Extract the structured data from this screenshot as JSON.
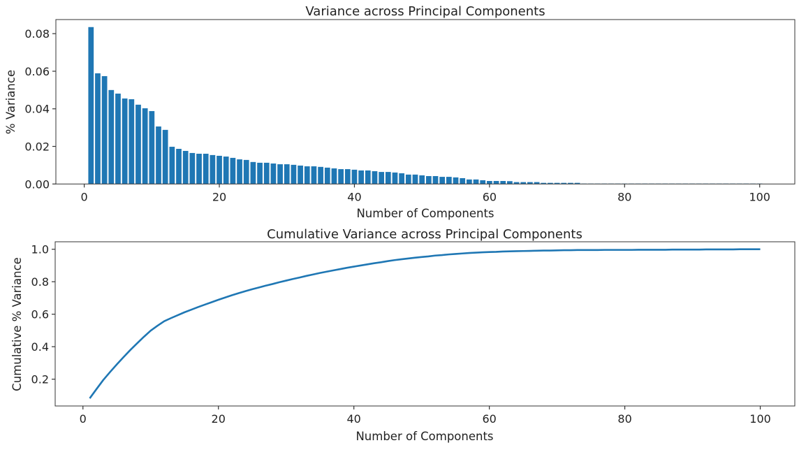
{
  "chart_data": [
    {
      "type": "bar",
      "title": "Variance across Principal Components",
      "xlabel": "Number of Components",
      "ylabel": "% Variance",
      "xlim": [
        -4.2,
        105.2
      ],
      "ylim": [
        0,
        0.0875
      ],
      "xticks": [
        0,
        20,
        40,
        60,
        80,
        100
      ],
      "xtick_labels": [
        "0",
        "20",
        "40",
        "60",
        "80",
        "100"
      ],
      "yticks": [
        0,
        0.02,
        0.04,
        0.06,
        0.08
      ],
      "ytick_labels": [
        "0.00",
        "0.02",
        "0.04",
        "0.06",
        "0.08"
      ],
      "grid": false,
      "color": "#1f77b4",
      "x_start": 1,
      "values": [
        0.0835,
        0.0589,
        0.0574,
        0.05,
        0.0481,
        0.0455,
        0.0451,
        0.0422,
        0.0403,
        0.0388,
        0.0306,
        0.0288,
        0.0198,
        0.0187,
        0.0176,
        0.0165,
        0.0161,
        0.0161,
        0.0154,
        0.015,
        0.0146,
        0.0139,
        0.0131,
        0.0128,
        0.0117,
        0.0113,
        0.0113,
        0.0109,
        0.0105,
        0.0105,
        0.0102,
        0.0098,
        0.0094,
        0.0094,
        0.0091,
        0.0087,
        0.0083,
        0.0079,
        0.0079,
        0.0076,
        0.0072,
        0.0072,
        0.0068,
        0.0064,
        0.0064,
        0.0061,
        0.0057,
        0.005,
        0.005,
        0.0046,
        0.0042,
        0.0042,
        0.0038,
        0.0038,
        0.0035,
        0.0031,
        0.0024,
        0.0024,
        0.002,
        0.0016,
        0.0016,
        0.0016,
        0.0015,
        0.001,
        0.001,
        0.001,
        0.001,
        0.0006,
        0.0006,
        0.0006,
        0.0006,
        0.0006,
        0.0006,
        0.0002,
        0.0002,
        0.0002,
        0.0002,
        0.0002,
        0.0002,
        0.0002,
        0.0002,
        0.0002,
        0.0002,
        0.0002,
        0.0002,
        0.0002,
        0.0002,
        0.0002,
        0.0002,
        0.0002,
        0.0002,
        0.0002,
        0.0002,
        0.0002,
        0.0002,
        0.0002,
        0.0002,
        0.0002,
        0.0002,
        0.0002
      ]
    },
    {
      "type": "line",
      "title": "Cumulative Variance across Principal Components",
      "xlabel": "Number of Components",
      "ylabel": "Cumulative % Variance",
      "xlim": [
        -4.1,
        105.1
      ],
      "ylim": [
        0.035,
        1.046
      ],
      "xticks": [
        0,
        20,
        40,
        60,
        80,
        100
      ],
      "xtick_labels": [
        "0",
        "20",
        "40",
        "60",
        "80",
        "100"
      ],
      "yticks": [
        0.2,
        0.4,
        0.6,
        0.8,
        1.0
      ],
      "ytick_labels": [
        "0.2",
        "0.4",
        "0.6",
        "0.8",
        "1.0"
      ],
      "grid": false,
      "color": "#1f77b4",
      "x_start": 1,
      "values": [
        0.082,
        0.139,
        0.195,
        0.244,
        0.291,
        0.336,
        0.38,
        0.421,
        0.461,
        0.499,
        0.529,
        0.557,
        0.576,
        0.594,
        0.612,
        0.628,
        0.644,
        0.659,
        0.674,
        0.689,
        0.703,
        0.717,
        0.73,
        0.742,
        0.754,
        0.765,
        0.776,
        0.786,
        0.797,
        0.807,
        0.817,
        0.826,
        0.836,
        0.845,
        0.854,
        0.862,
        0.87,
        0.878,
        0.886,
        0.893,
        0.9,
        0.907,
        0.914,
        0.92,
        0.927,
        0.933,
        0.938,
        0.943,
        0.948,
        0.952,
        0.956,
        0.961,
        0.964,
        0.968,
        0.971,
        0.974,
        0.977,
        0.979,
        0.981,
        0.983,
        0.984,
        0.986,
        0.987,
        0.988,
        0.989,
        0.99,
        0.991,
        0.992,
        0.992,
        0.993,
        0.994,
        0.994,
        0.995,
        0.995,
        0.995,
        0.995,
        0.996,
        0.996,
        0.996,
        0.996,
        0.996,
        0.997,
        0.997,
        0.997,
        0.997,
        0.997,
        0.998,
        0.998,
        0.998,
        0.998,
        0.998,
        0.999,
        0.999,
        0.999,
        0.999,
        0.999,
        1.0,
        1.0,
        1.0,
        1.0
      ]
    }
  ]
}
